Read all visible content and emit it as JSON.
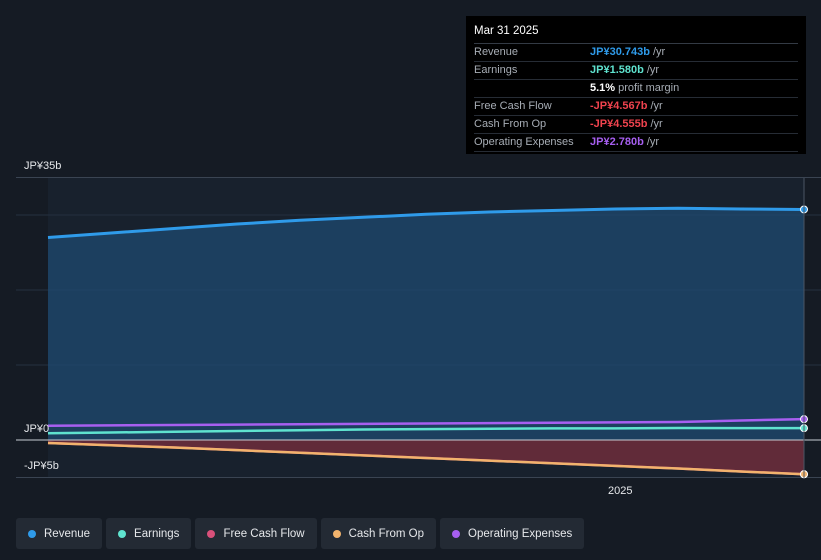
{
  "tooltip": {
    "date": "Mar 31 2025",
    "rows": [
      {
        "label": "Revenue",
        "value": "JP¥30.743b",
        "unit": "/yr",
        "color": "#2f9bea"
      },
      {
        "label": "Earnings",
        "value": "JP¥1.580b",
        "unit": "/yr",
        "color": "#5fe3cf"
      },
      {
        "label": "",
        "value": "5.1%",
        "unit": "profit margin",
        "color": "#ffffff"
      },
      {
        "label": "Free Cash Flow",
        "value": "-JP¥4.567b",
        "unit": "/yr",
        "color": "#f0434e"
      },
      {
        "label": "Cash From Op",
        "value": "-JP¥4.555b",
        "unit": "/yr",
        "color": "#f0434e"
      },
      {
        "label": "Operating Expenses",
        "value": "JP¥2.780b",
        "unit": "/yr",
        "color": "#a75ff0"
      }
    ]
  },
  "chart_data": {
    "type": "area",
    "ylim": [
      -5,
      35
    ],
    "y_tick_labels": [
      "JP¥35b",
      "JP¥0",
      "-JP¥5b"
    ],
    "x_tick_labels": [
      "2025"
    ],
    "x": [
      2024.0,
      2024.1,
      2024.2,
      2024.3,
      2024.4,
      2024.5,
      2024.6,
      2024.7,
      2024.8,
      2024.9,
      2025.0,
      2025.1,
      2025.2
    ],
    "series": [
      {
        "name": "Revenue",
        "color": "#2f9bea",
        "values": [
          27.0,
          27.6,
          28.2,
          28.8,
          29.3,
          29.7,
          30.1,
          30.4,
          30.6,
          30.8,
          30.9,
          30.8,
          30.74
        ]
      },
      {
        "name": "Earnings",
        "color": "#5fe3cf",
        "values": [
          0.9,
          1.0,
          1.1,
          1.2,
          1.3,
          1.4,
          1.45,
          1.5,
          1.55,
          1.55,
          1.6,
          1.58,
          1.58
        ]
      },
      {
        "name": "Free Cash Flow",
        "color": "#d9507a",
        "values": [
          -0.4,
          -0.7,
          -1.0,
          -1.35,
          -1.7,
          -2.05,
          -2.4,
          -2.75,
          -3.1,
          -3.45,
          -3.8,
          -4.2,
          -4.567
        ]
      },
      {
        "name": "Cash From Op",
        "color": "#f2b36d",
        "values": [
          -0.4,
          -0.7,
          -1.0,
          -1.35,
          -1.7,
          -2.05,
          -2.4,
          -2.75,
          -3.1,
          -3.45,
          -3.8,
          -4.2,
          -4.555
        ]
      },
      {
        "name": "Operating Expenses",
        "color": "#a75ff0",
        "values": [
          1.9,
          1.95,
          2.0,
          2.05,
          2.1,
          2.15,
          2.2,
          2.25,
          2.3,
          2.35,
          2.4,
          2.6,
          2.78
        ]
      }
    ]
  },
  "legend": [
    {
      "label": "Revenue",
      "color": "#2f9bea"
    },
    {
      "label": "Earnings",
      "color": "#5fe3cf"
    },
    {
      "label": "Free Cash Flow",
      "color": "#d9507a"
    },
    {
      "label": "Cash From Op",
      "color": "#f2b36d"
    },
    {
      "label": "Operating Expenses",
      "color": "#a75ff0"
    }
  ]
}
